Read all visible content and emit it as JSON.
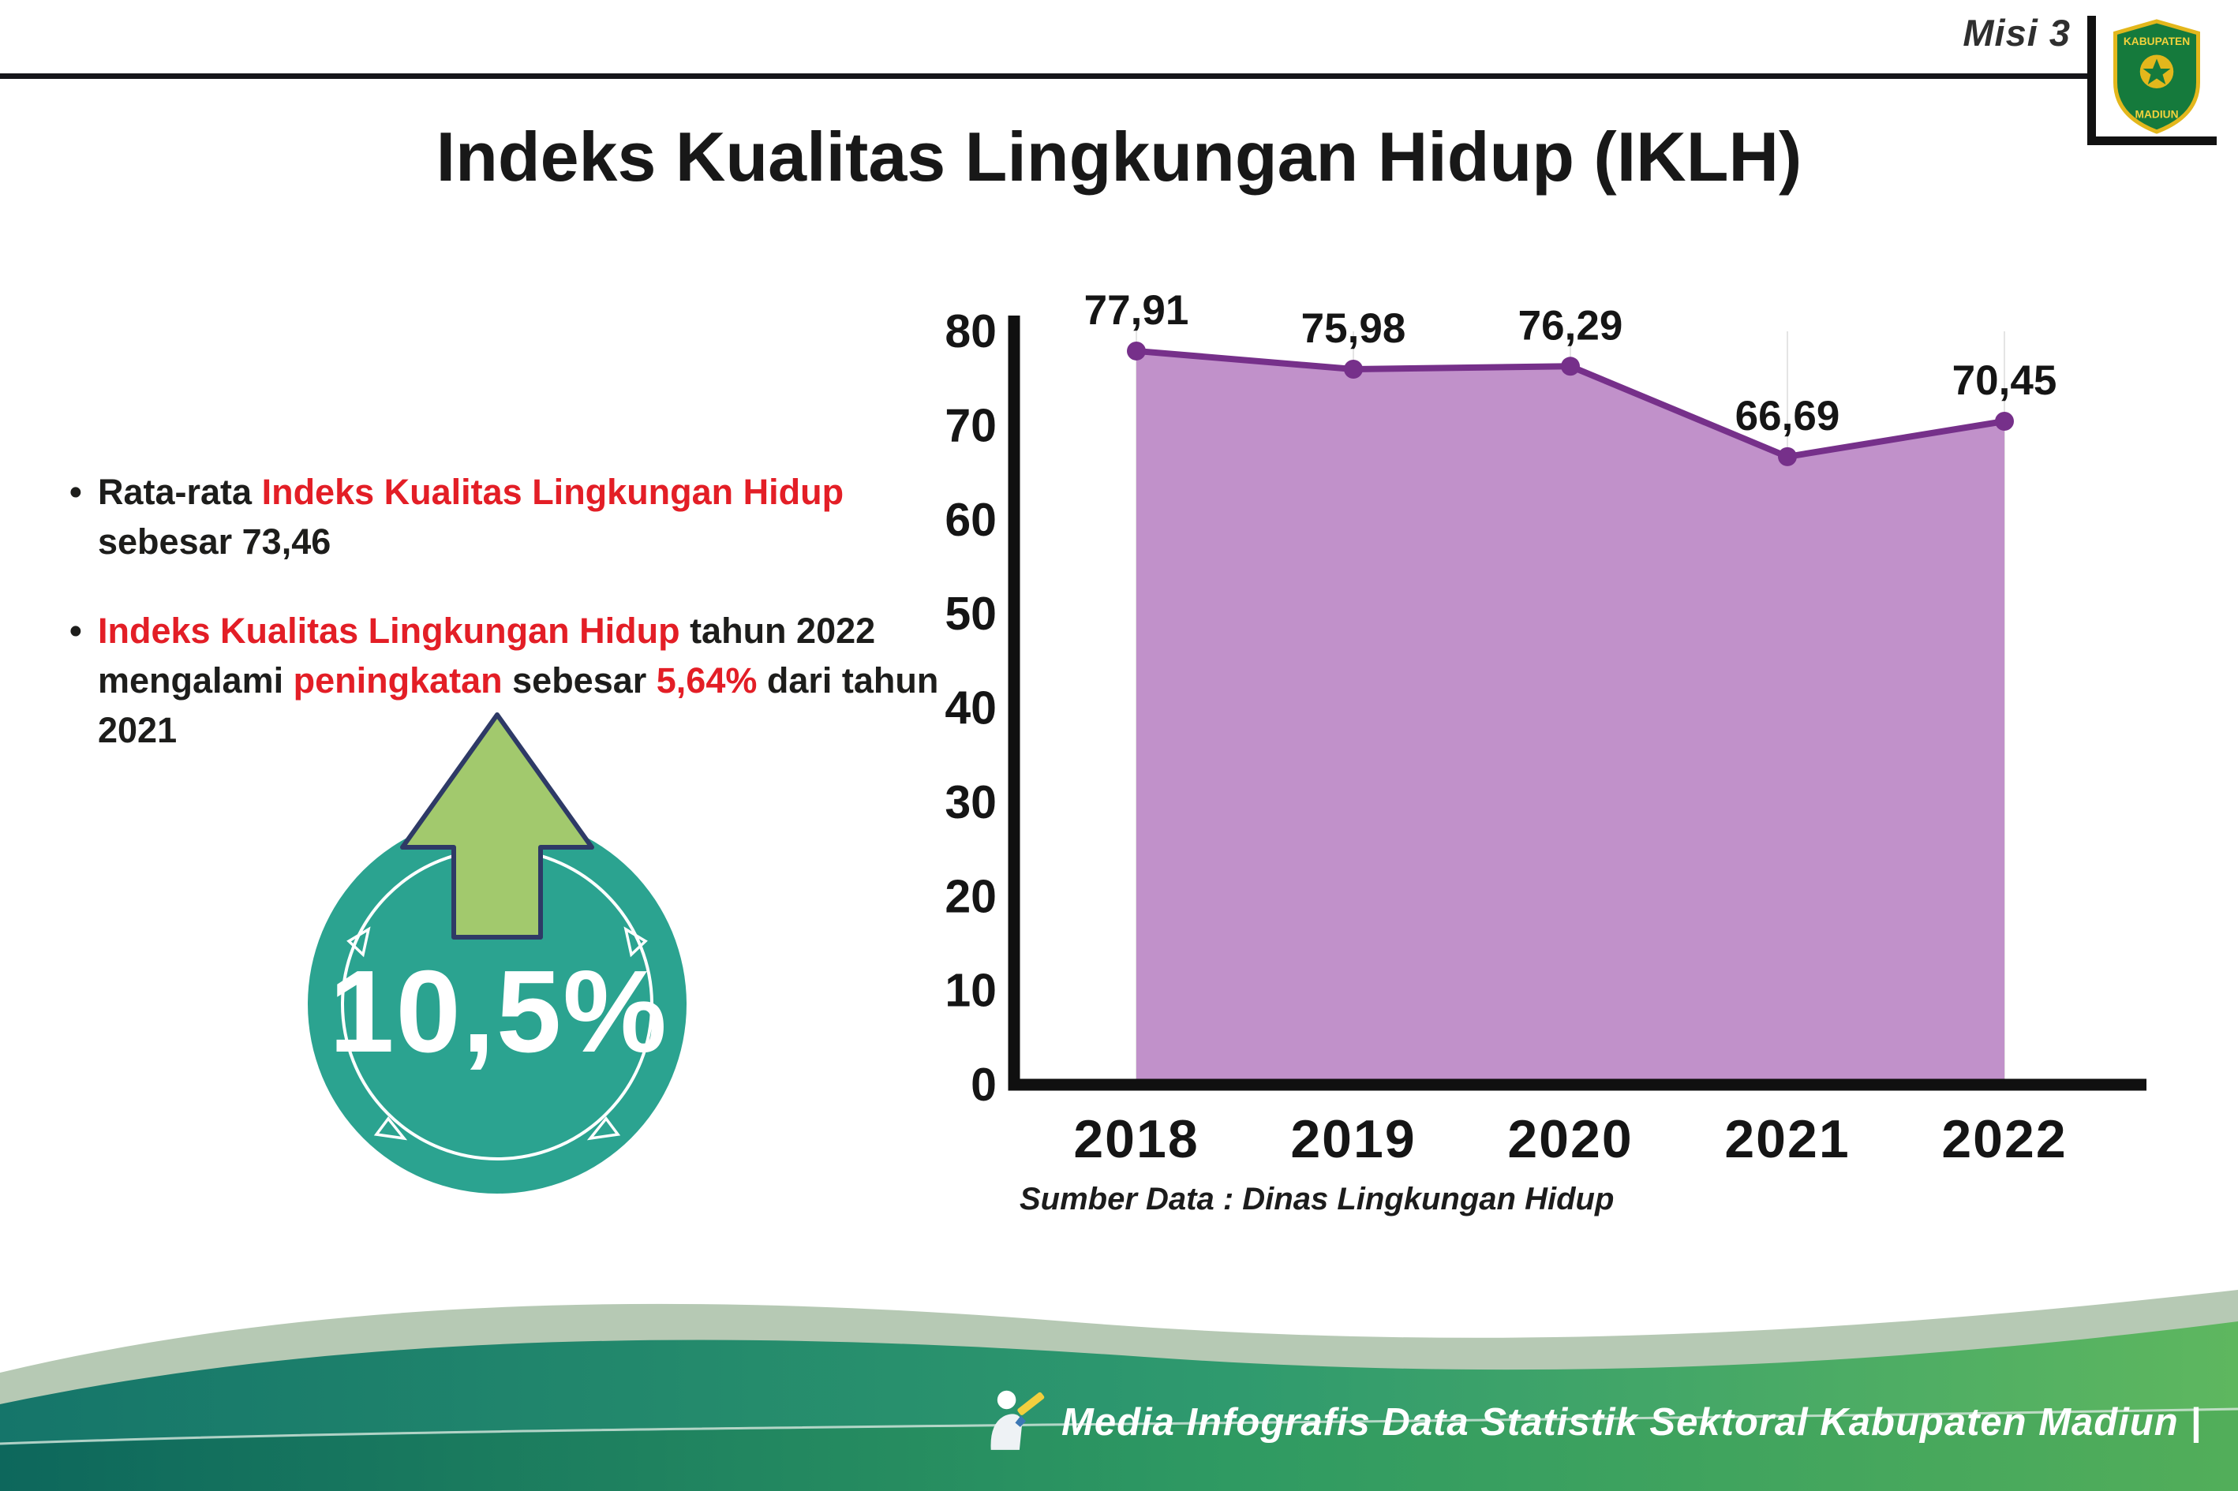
{
  "header": {
    "misi_label": "Misi 3",
    "title": "Indeks Kualitas Lingkungan Hidup (IKLH)",
    "logo_top": "KABUPATEN",
    "logo_bottom": "MADIUN"
  },
  "bullets": {
    "b1": {
      "s1": "Rata-rata ",
      "s2": "Indeks Kualitas Lingkungan Hidup",
      "s3": " sebesar 73,46"
    },
    "b2": {
      "s1": "Indeks Kualitas Lingkungan Hidup",
      "s2": " tahun 2022 mengalami ",
      "s3": "peningkatan",
      "s4": " sebesar ",
      "s5": "5,64%",
      "s6": " dari tahun 2021"
    }
  },
  "badge": {
    "value": "10,5%"
  },
  "chart_data": {
    "type": "area",
    "title": "",
    "xlabel": "",
    "ylabel": "",
    "categories": [
      "2018",
      "2019",
      "2020",
      "2021",
      "2022"
    ],
    "values": [
      77.91,
      75.98,
      76.29,
      66.69,
      70.45
    ],
    "point_labels": [
      "77,91",
      "75,98",
      "76,29",
      "66,69",
      "70,45"
    ],
    "ylim": [
      0,
      80
    ],
    "yticks": [
      0,
      10,
      20,
      30,
      40,
      50,
      60,
      70,
      80
    ],
    "grid": "vertical-light",
    "legend": "none",
    "line_color": "#76308a",
    "fill_color": "#c191ca",
    "source": "Sumber Data : Dinas Lingkungan Hidup"
  },
  "footer": {
    "credit": "Media Infografis Data Statistik Sektoral Kabupaten Madiun |"
  },
  "colors": {
    "accent_red": "#e31e26",
    "badge_teal": "#2ba390",
    "arrow_green": "#a2c96d",
    "text_dark": "#1d1d1b"
  }
}
